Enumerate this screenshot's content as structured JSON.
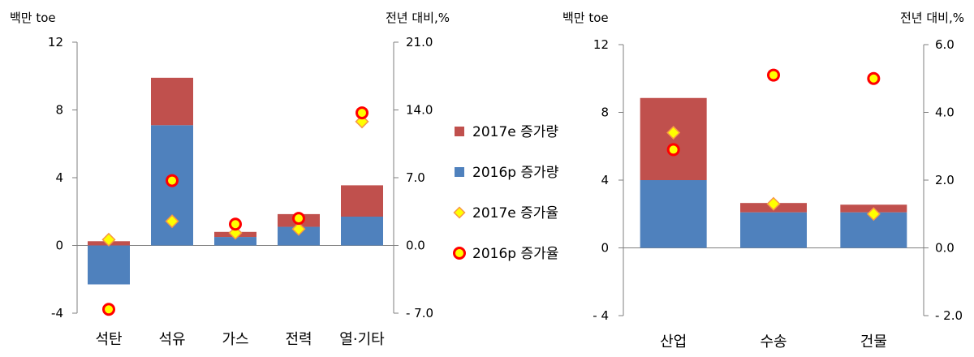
{
  "colors": {
    "increase_2017e": "#C0504D",
    "increase_2016p": "#4F81BD",
    "rate_2017e_fill": "#FFFF00",
    "rate_2017e_stroke": "#F79646",
    "rate_2016p_fill": "#FFFF00",
    "rate_2016p_stroke": "#FF0000"
  },
  "legend": {
    "position": "between-charts",
    "items": [
      {
        "label": "2017e 증가량",
        "marker": "square",
        "color": "#C0504D"
      },
      {
        "label": "2016p 증가량",
        "marker": "square",
        "color": "#4F81BD"
      },
      {
        "label": "2017e 증가율",
        "marker": "diamond",
        "color": "#FFFF00"
      },
      {
        "label": "2016p 증가율",
        "marker": "circle",
        "color": "#FFFF00"
      }
    ]
  },
  "chart_data": [
    {
      "type": "bar",
      "stacked": true,
      "ylabel_left": "백만 toe",
      "ylabel_right": "전년 대비,%",
      "ylim_left": [
        -4,
        12
      ],
      "ylim_right": [
        -7.0,
        21.0
      ],
      "yticks_left": [
        "-4",
        "0",
        "4",
        "8",
        "12"
      ],
      "yticks_right": [
        "- 7.0",
        "0.0",
        "7.0",
        "14.0",
        "21.0"
      ],
      "grid": false,
      "categories": [
        "석탄",
        "석유",
        "가스",
        "전력",
        "열·기타"
      ],
      "series": [
        {
          "name": "2016p 증가량",
          "kind": "bar",
          "axis": "left",
          "values": [
            -2.3,
            7.1,
            0.5,
            1.1,
            1.7
          ]
        },
        {
          "name": "2017e 증가량",
          "kind": "bar",
          "axis": "left",
          "values": [
            0.25,
            2.8,
            0.3,
            0.75,
            1.85
          ]
        },
        {
          "name": "2017e 증가율",
          "kind": "marker",
          "axis": "right",
          "values": [
            0.6,
            2.5,
            1.3,
            1.7,
            12.8
          ]
        },
        {
          "name": "2016p 증가율",
          "kind": "marker",
          "axis": "right",
          "values": [
            -6.6,
            6.7,
            2.2,
            2.8,
            13.7
          ]
        }
      ]
    },
    {
      "type": "bar",
      "stacked": true,
      "ylabel_left": "백만 toe",
      "ylabel_right": "전년 대비,%",
      "ylim_left": [
        -4,
        12
      ],
      "ylim_right": [
        -2.0,
        6.0
      ],
      "yticks_left": [
        "- 4",
        "0",
        "4",
        "8",
        "12"
      ],
      "yticks_right": [
        "- 2.0",
        "0.0",
        "2.0",
        "4.0",
        "6.0"
      ],
      "grid": false,
      "categories": [
        "산업",
        "수송",
        "건물"
      ],
      "series": [
        {
          "name": "2016p 증가량",
          "kind": "bar",
          "axis": "left",
          "values": [
            4.0,
            2.1,
            2.1
          ]
        },
        {
          "name": "2017e 증가량",
          "kind": "bar",
          "axis": "left",
          "values": [
            4.85,
            0.55,
            0.45
          ]
        },
        {
          "name": "2017e 증가율",
          "kind": "marker",
          "axis": "right",
          "values": [
            3.4,
            1.3,
            1.0
          ]
        },
        {
          "name": "2016p 증가율",
          "kind": "marker",
          "axis": "right",
          "values": [
            2.9,
            5.1,
            5.0
          ]
        }
      ]
    }
  ]
}
